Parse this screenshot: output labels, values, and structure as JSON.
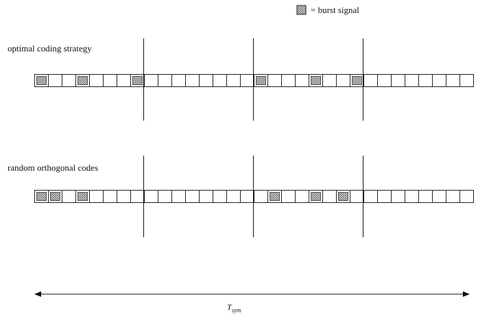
{
  "legend": {
    "text": "= burst signal"
  },
  "rows": [
    {
      "label": "optimal coding strategy",
      "slot_count": 32,
      "burst_slots": [
        0,
        3,
        7,
        16,
        20,
        23
      ]
    },
    {
      "label": "random orthogonal codes",
      "slot_count": 32,
      "burst_slots": [
        0,
        1,
        3,
        17,
        20,
        22
      ]
    }
  ],
  "divider_after_slots": [
    8,
    16,
    24
  ],
  "time_axis": {
    "symbol": "T",
    "subscript": "sym"
  }
}
